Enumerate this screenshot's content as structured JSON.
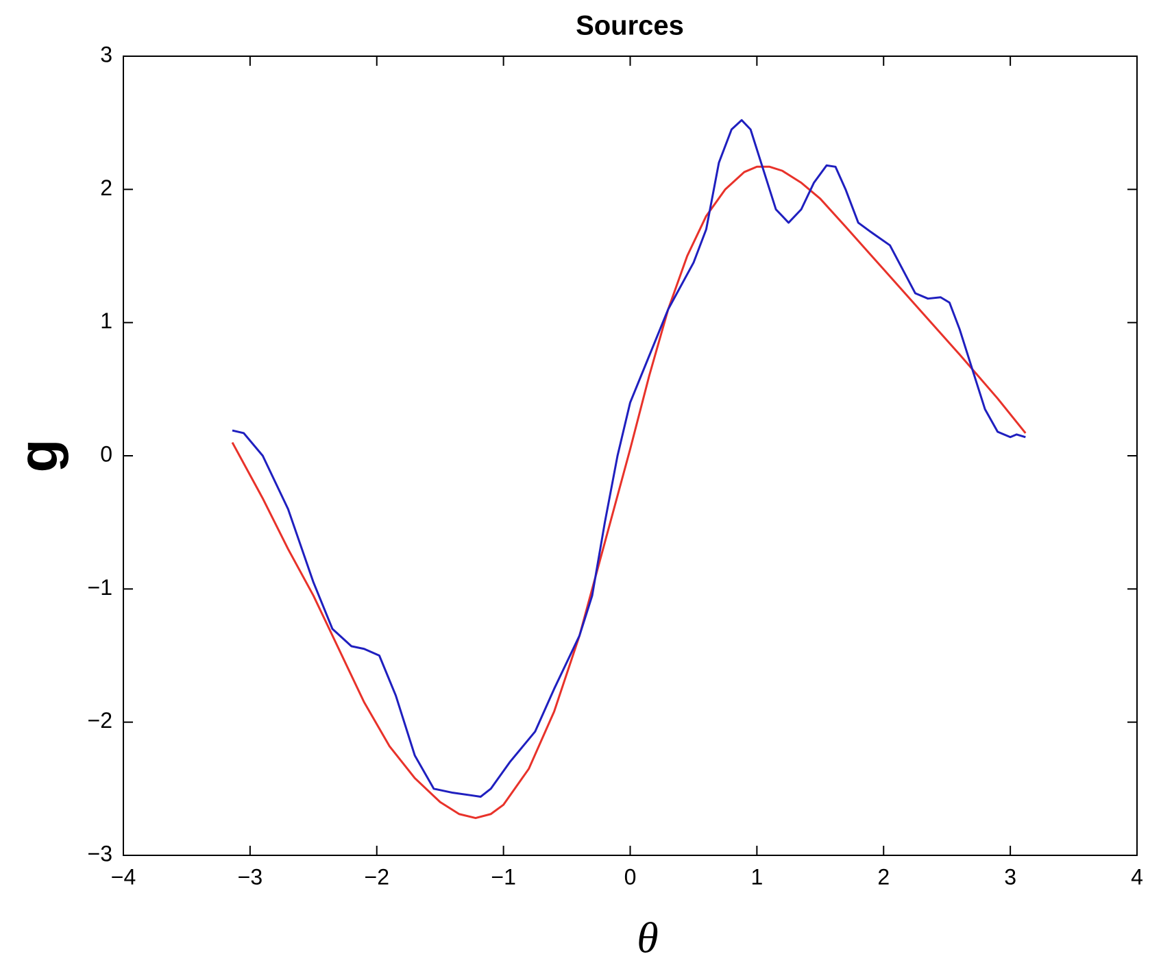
{
  "chart_data": {
    "type": "line",
    "title": "Sources",
    "x_label": "θ",
    "y_label": "g",
    "xlim": [
      -4,
      4
    ],
    "ylim": [
      -3,
      3
    ],
    "xticks": [
      {
        "value": -4,
        "label": "−4"
      },
      {
        "value": -3,
        "label": "−3"
      },
      {
        "value": -2,
        "label": "−2"
      },
      {
        "value": -1,
        "label": "−1"
      },
      0,
      1,
      2,
      3,
      4
    ],
    "yticks": [
      {
        "value": -3,
        "label": "−3"
      },
      {
        "value": -2,
        "label": "−2"
      },
      {
        "value": -1,
        "label": "−1"
      },
      0,
      1,
      2,
      3
    ],
    "grid": false,
    "series": [
      {
        "color": "#e8322a",
        "x": [
          -3.14,
          -2.9,
          -2.7,
          -2.5,
          -2.3,
          -2.1,
          -1.9,
          -1.7,
          -1.5,
          -1.35,
          -1.22,
          -1.1,
          -1.0,
          -0.8,
          -0.6,
          -0.4,
          -0.2,
          0.0,
          0.15,
          0.3,
          0.45,
          0.6,
          0.75,
          0.9,
          1.0,
          1.1,
          1.2,
          1.35,
          1.5,
          1.7,
          2.0,
          2.3,
          2.6,
          2.9,
          3.12
        ],
        "values": [
          0.1,
          -0.32,
          -0.7,
          -1.05,
          -1.45,
          -1.85,
          -2.18,
          -2.42,
          -2.6,
          -2.69,
          -2.72,
          -2.69,
          -2.62,
          -2.35,
          -1.92,
          -1.35,
          -0.65,
          0.05,
          0.6,
          1.1,
          1.5,
          1.8,
          2.0,
          2.13,
          2.17,
          2.17,
          2.14,
          2.05,
          1.93,
          1.72,
          1.4,
          1.08,
          0.76,
          0.43,
          0.17
        ]
      },
      {
        "color": "#1f1fbf",
        "x": [
          -3.14,
          -3.05,
          -2.9,
          -2.7,
          -2.5,
          -2.35,
          -2.2,
          -2.1,
          -1.98,
          -1.85,
          -1.7,
          -1.55,
          -1.4,
          -1.25,
          -1.18,
          -1.1,
          -0.95,
          -0.75,
          -0.6,
          -0.4,
          -0.3,
          -0.2,
          -0.1,
          0.0,
          0.15,
          0.3,
          0.5,
          0.6,
          0.7,
          0.8,
          0.88,
          0.95,
          1.05,
          1.15,
          1.25,
          1.35,
          1.45,
          1.55,
          1.62,
          1.7,
          1.8,
          1.9,
          2.05,
          2.15,
          2.25,
          2.35,
          2.45,
          2.52,
          2.6,
          2.7,
          2.8,
          2.9,
          3.0,
          3.05,
          3.12
        ],
        "values": [
          0.19,
          0.17,
          0.0,
          -0.4,
          -0.95,
          -1.3,
          -1.43,
          -1.45,
          -1.5,
          -1.8,
          -2.25,
          -2.5,
          -2.53,
          -2.55,
          -2.56,
          -2.5,
          -2.3,
          -2.07,
          -1.75,
          -1.35,
          -1.05,
          -0.5,
          0.0,
          0.4,
          0.75,
          1.1,
          1.45,
          1.7,
          2.2,
          2.45,
          2.52,
          2.45,
          2.15,
          1.85,
          1.75,
          1.85,
          2.05,
          2.18,
          2.17,
          2.0,
          1.75,
          1.68,
          1.58,
          1.4,
          1.22,
          1.18,
          1.19,
          1.15,
          0.95,
          0.65,
          0.35,
          0.18,
          0.14,
          0.16,
          0.14
        ]
      }
    ]
  }
}
